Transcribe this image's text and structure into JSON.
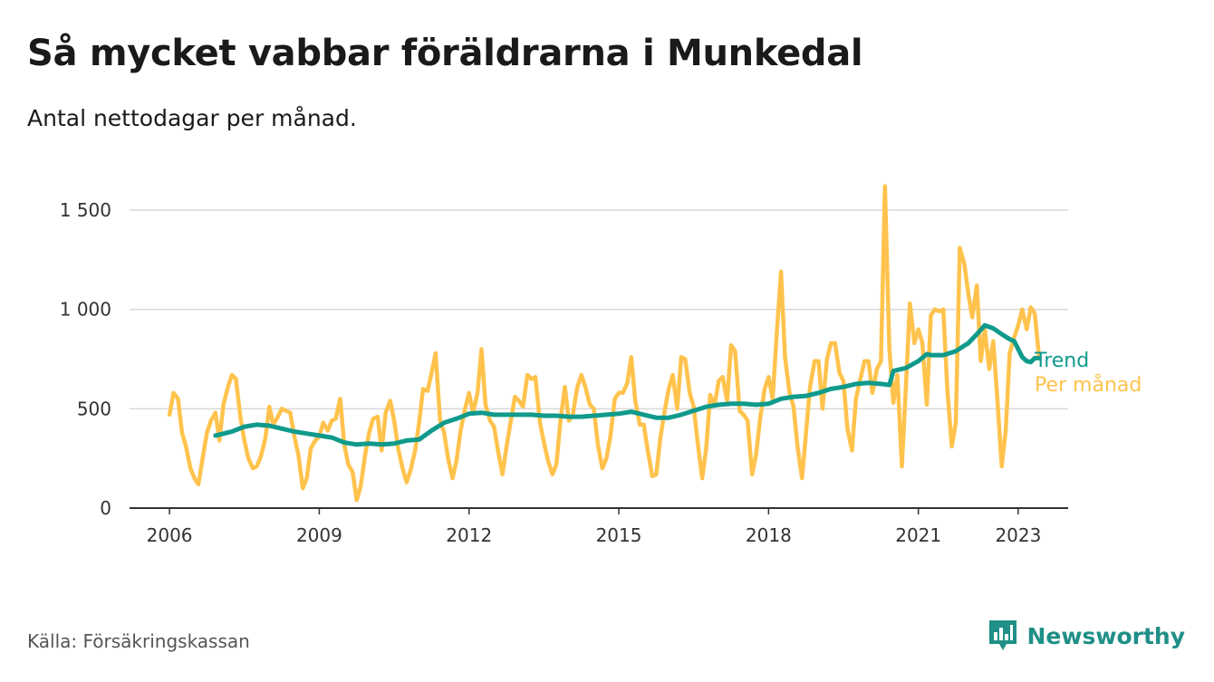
{
  "header": {
    "title": "Så mycket vabbar föräldrarna i Munkedal",
    "subtitle": "Antal nettodagar per månad."
  },
  "footer": {
    "source": "Källa: Försäkringskassan",
    "brand": "Newsworthy",
    "brand_icon": "bar-chart-speech-bubble-icon"
  },
  "colors": {
    "trend": "#0f9a8c",
    "per_month": "#ffc34d",
    "grid": "#d9d9d9",
    "axis": "#333333",
    "brand": "#1f8f87"
  },
  "chart_data": {
    "type": "line",
    "x_unit": "year",
    "xlim": [
      2005.2,
      2024.0
    ],
    "ylim": [
      0,
      1600
    ],
    "x_ticks": [
      {
        "value": 2006,
        "label": "2006"
      },
      {
        "value": 2009,
        "label": "2009"
      },
      {
        "value": 2012,
        "label": "2012"
      },
      {
        "value": 2015,
        "label": "2015"
      },
      {
        "value": 2018,
        "label": "2018"
      },
      {
        "value": 2021,
        "label": "2021"
      },
      {
        "value": 2023,
        "label": "2023"
      }
    ],
    "y_ticks": [
      {
        "value": 0,
        "label": "0"
      },
      {
        "value": 500,
        "label": "500"
      },
      {
        "value": 1000,
        "label": "1 000"
      },
      {
        "value": 1500,
        "label": "1 500"
      }
    ],
    "grid": "horizontal",
    "legend": "right end of lines",
    "series": [
      {
        "name": "Per månad",
        "color": "#ffc34d",
        "x": [
          2006.0,
          2006.08,
          2006.17,
          2006.25,
          2006.33,
          2006.42,
          2006.5,
          2006.58,
          2006.67,
          2006.75,
          2006.83,
          2006.92,
          2007.0,
          2007.08,
          2007.17,
          2007.25,
          2007.33,
          2007.42,
          2007.5,
          2007.58,
          2007.67,
          2007.75,
          2007.83,
          2007.92,
          2008.0,
          2008.08,
          2008.17,
          2008.25,
          2008.33,
          2008.42,
          2008.5,
          2008.58,
          2008.67,
          2008.75,
          2008.83,
          2008.92,
          2009.0,
          2009.08,
          2009.17,
          2009.25,
          2009.33,
          2009.42,
          2009.5,
          2009.58,
          2009.67,
          2009.75,
          2009.83,
          2009.92,
          2010.0,
          2010.08,
          2010.17,
          2010.25,
          2010.33,
          2010.42,
          2010.5,
          2010.58,
          2010.67,
          2010.75,
          2010.83,
          2010.92,
          2011.0,
          2011.08,
          2011.17,
          2011.25,
          2011.33,
          2011.42,
          2011.5,
          2011.58,
          2011.67,
          2011.75,
          2011.83,
          2011.92,
          2012.0,
          2012.08,
          2012.17,
          2012.25,
          2012.33,
          2012.42,
          2012.5,
          2012.58,
          2012.67,
          2012.75,
          2012.83,
          2012.92,
          2013.0,
          2013.08,
          2013.17,
          2013.25,
          2013.33,
          2013.42,
          2013.5,
          2013.58,
          2013.67,
          2013.75,
          2013.83,
          2013.92,
          2014.0,
          2014.08,
          2014.17,
          2014.25,
          2014.33,
          2014.42,
          2014.5,
          2014.58,
          2014.67,
          2014.75,
          2014.83,
          2014.92,
          2015.0,
          2015.08,
          2015.17,
          2015.25,
          2015.33,
          2015.42,
          2015.5,
          2015.58,
          2015.67,
          2015.75,
          2015.83,
          2015.92,
          2016.0,
          2016.08,
          2016.17,
          2016.25,
          2016.33,
          2016.42,
          2016.5,
          2016.58,
          2016.67,
          2016.75,
          2016.83,
          2016.92,
          2017.0,
          2017.08,
          2017.17,
          2017.25,
          2017.33,
          2017.42,
          2017.5,
          2017.58,
          2017.67,
          2017.75,
          2017.83,
          2017.92,
          2018.0,
          2018.08,
          2018.17,
          2018.25,
          2018.33,
          2018.42,
          2018.5,
          2018.58,
          2018.67,
          2018.75,
          2018.83,
          2018.92,
          2019.0,
          2019.08,
          2019.17,
          2019.25,
          2019.33,
          2019.42,
          2019.5,
          2019.58,
          2019.67,
          2019.75,
          2019.83,
          2019.92,
          2020.0,
          2020.08,
          2020.17,
          2020.25,
          2020.33,
          2020.42,
          2020.5,
          2020.58,
          2020.67,
          2020.75,
          2020.83,
          2020.92,
          2021.0,
          2021.08,
          2021.17,
          2021.25,
          2021.33,
          2021.42,
          2021.5,
          2021.58,
          2021.67,
          2021.75,
          2021.83,
          2021.92,
          2022.0,
          2022.08,
          2022.17,
          2022.25,
          2022.33,
          2022.42,
          2022.5,
          2022.58,
          2022.67,
          2022.75,
          2022.83,
          2022.92,
          2023.0,
          2023.08,
          2023.17,
          2023.25,
          2023.33,
          2023.42
        ],
        "values": [
          470,
          580,
          550,
          380,
          310,
          200,
          150,
          120,
          260,
          380,
          440,
          480,
          340,
          520,
          610,
          670,
          650,
          460,
          340,
          250,
          200,
          210,
          260,
          350,
          510,
          420,
          460,
          500,
          490,
          480,
          360,
          270,
          100,
          150,
          300,
          340,
          360,
          430,
          390,
          440,
          450,
          550,
          320,
          220,
          180,
          40,
          110,
          270,
          380,
          450,
          460,
          290,
          480,
          540,
          440,
          300,
          200,
          130,
          190,
          290,
          430,
          600,
          590,
          680,
          780,
          440,
          380,
          250,
          150,
          240,
          390,
          500,
          580,
          480,
          580,
          800,
          520,
          440,
          410,
          290,
          170,
          310,
          430,
          560,
          540,
          510,
          670,
          650,
          660,
          430,
          330,
          240,
          170,
          220,
          440,
          610,
          440,
          470,
          610,
          670,
          610,
          520,
          500,
          320,
          200,
          250,
          360,
          550,
          580,
          580,
          630,
          760,
          540,
          420,
          420,
          290,
          160,
          170,
          350,
          490,
          600,
          670,
          500,
          760,
          750,
          580,
          510,
          330,
          150,
          300,
          570,
          520,
          640,
          660,
          540,
          820,
          790,
          490,
          470,
          440,
          170,
          270,
          450,
          600,
          660,
          550,
          900,
          1190,
          760,
          580,
          510,
          310,
          150,
          380,
          610,
          740,
          740,
          500,
          750,
          830,
          830,
          680,
          640,
          400,
          290,
          550,
          640,
          740,
          740,
          580,
          700,
          740,
          1620,
          800,
          530,
          670,
          210,
          610,
          1030,
          830,
          900,
          830,
          520,
          970,
          1000,
          990,
          1000,
          600,
          310,
          430,
          1310,
          1230,
          1080,
          960,
          1120,
          740,
          900,
          700,
          840,
          560,
          210,
          390,
          780,
          860,
          920,
          1000,
          900,
          1010,
          980,
          760
        ]
      },
      {
        "name": "Trend",
        "color": "#0f9a8c",
        "x": [
          2006.92,
          2007.25,
          2007.5,
          2007.75,
          2008.0,
          2008.25,
          2008.5,
          2008.75,
          2009.0,
          2009.25,
          2009.5,
          2009.75,
          2010.0,
          2010.25,
          2010.5,
          2010.75,
          2011.0,
          2011.25,
          2011.5,
          2011.75,
          2012.0,
          2012.25,
          2012.5,
          2012.75,
          2013.0,
          2013.25,
          2013.5,
          2013.75,
          2014.0,
          2014.25,
          2014.5,
          2014.75,
          2015.0,
          2015.25,
          2015.5,
          2015.75,
          2016.0,
          2016.25,
          2016.5,
          2016.75,
          2017.0,
          2017.25,
          2017.5,
          2017.75,
          2018.0,
          2018.25,
          2018.5,
          2018.75,
          2019.0,
          2019.25,
          2019.5,
          2019.75,
          2020.0,
          2020.25,
          2020.42,
          2020.5,
          2020.75,
          2021.0,
          2021.17,
          2021.25,
          2021.5,
          2021.75,
          2022.0,
          2022.17,
          2022.33,
          2022.5,
          2022.67,
          2022.83,
          2022.92,
          2023.0,
          2023.08,
          2023.17,
          2023.25,
          2023.33,
          2023.42
        ],
        "values": [
          365,
          385,
          410,
          420,
          415,
          400,
          385,
          375,
          365,
          355,
          330,
          320,
          325,
          320,
          325,
          340,
          345,
          390,
          430,
          450,
          475,
          480,
          470,
          470,
          470,
          470,
          465,
          465,
          460,
          460,
          465,
          470,
          475,
          485,
          470,
          455,
          455,
          470,
          490,
          510,
          520,
          525,
          525,
          520,
          525,
          550,
          560,
          565,
          580,
          600,
          610,
          625,
          630,
          625,
          620,
          690,
          705,
          740,
          775,
          770,
          770,
          790,
          830,
          875,
          920,
          905,
          875,
          850,
          840,
          800,
          760,
          740,
          735,
          755,
          755
        ]
      }
    ]
  }
}
